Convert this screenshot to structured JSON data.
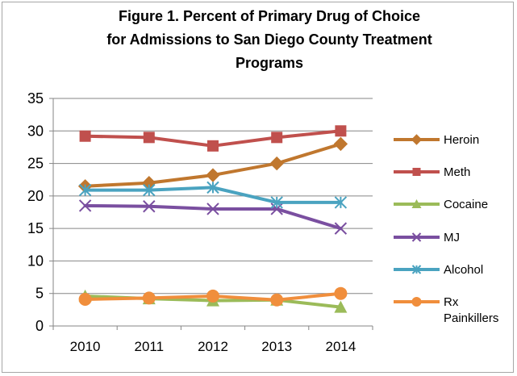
{
  "chart_data": {
    "type": "line",
    "title_lines": [
      "Figure 1. Percent of Primary Drug of Choice",
      "for Admissions to San Diego County Treatment",
      "Programs"
    ],
    "xlabel": "",
    "ylabel": "",
    "categories": [
      "2010",
      "2011",
      "2012",
      "2013",
      "2014"
    ],
    "ylim": [
      0,
      35
    ],
    "yticks": [
      "0",
      "5",
      "10",
      "15",
      "20",
      "25",
      "30",
      "35"
    ],
    "grid": true,
    "legend_position": "right",
    "series": [
      {
        "name": "Heroin",
        "color": "#c0772e",
        "marker": "diamond",
        "values": [
          21.5,
          22,
          23.2,
          25,
          28
        ]
      },
      {
        "name": "Meth",
        "color": "#c0504d",
        "marker": "square",
        "values": [
          29.2,
          29,
          27.7,
          29,
          30
        ]
      },
      {
        "name": "Cocaine",
        "color": "#9bbb59",
        "marker": "triangle",
        "values": [
          4.6,
          4.2,
          3.9,
          4,
          2.9
        ]
      },
      {
        "name": "MJ",
        "color": "#7a4fa0",
        "marker": "x",
        "values": [
          18.5,
          18.4,
          18,
          18,
          15
        ]
      },
      {
        "name": "Alcohol",
        "color": "#4aa3c0",
        "marker": "star",
        "values": [
          20.9,
          20.9,
          21.3,
          19,
          19
        ]
      },
      {
        "name": "Rx Painkillers",
        "label_lines": [
          "Rx",
          "Painkillers"
        ],
        "color": "#f08e3c",
        "marker": "circle",
        "values": [
          4.1,
          4.3,
          4.6,
          4,
          5
        ]
      }
    ]
  }
}
